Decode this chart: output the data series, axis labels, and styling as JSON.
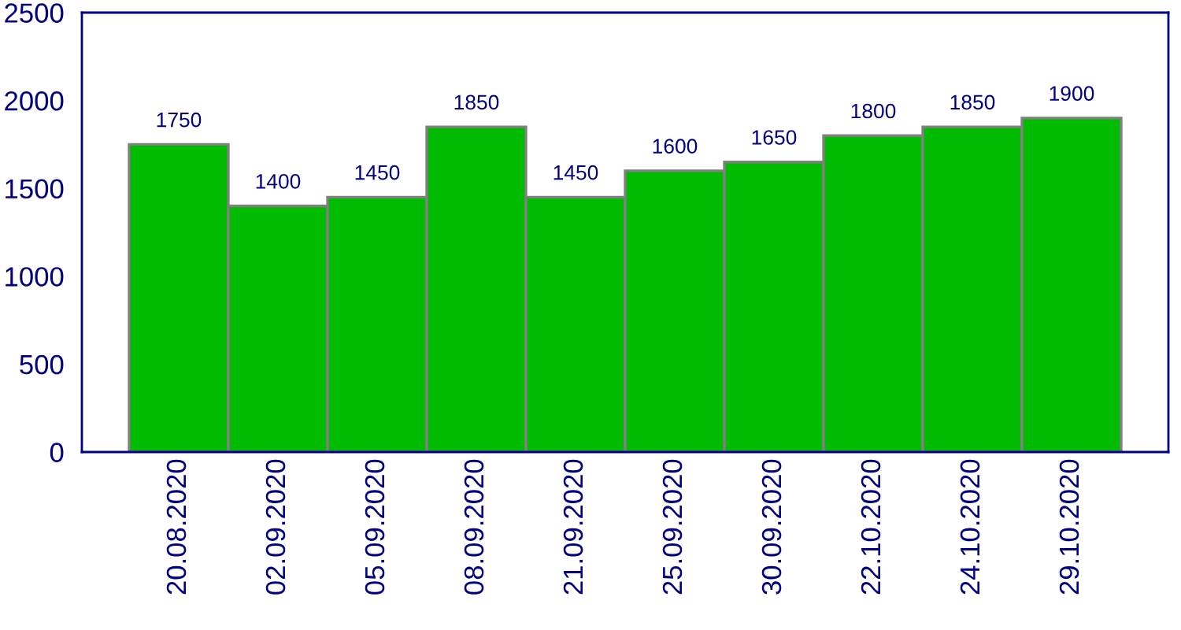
{
  "chart_data": {
    "type": "bar",
    "categories": [
      "20.08.2020",
      "02.09.2020",
      "05.09.2020",
      "08.09.2020",
      "21.09.2020",
      "25.09.2020",
      "30.09.2020",
      "22.10.2020",
      "24.10.2020",
      "29.10.2020"
    ],
    "values": [
      1750,
      1400,
      1450,
      1850,
      1450,
      1600,
      1650,
      1800,
      1850,
      1900
    ],
    "color": "#00bb00",
    "ylim": [
      0,
      2500
    ],
    "yticks": [
      0,
      500,
      1000,
      1500,
      2000,
      2500
    ],
    "data_labels": true,
    "grid": false,
    "legend": false
  }
}
